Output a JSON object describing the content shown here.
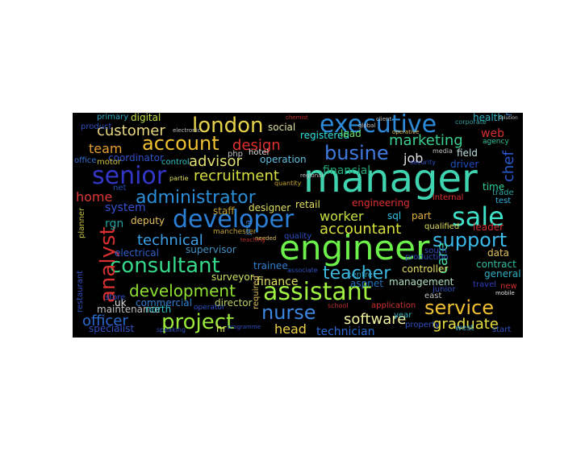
{
  "image": {
    "title": "",
    "type": "word cloud"
  },
  "words": [
    {
      "text": "manager",
      "color": "#3fd3b0"
    },
    {
      "text": "engineer",
      "color": "#6cf04a"
    },
    {
      "text": "developer",
      "color": "#2a7fd6"
    },
    {
      "text": "senior",
      "color": "#3237c8"
    },
    {
      "text": "sale",
      "color": "#3fe0c8"
    },
    {
      "text": "executive",
      "color": "#2d8ad8"
    },
    {
      "text": "assistant",
      "color": "#9ff040"
    },
    {
      "text": "london",
      "color": "#e5d24a"
    },
    {
      "text": "consultant",
      "color": "#36d88a"
    },
    {
      "text": "project",
      "color": "#9ae83a"
    },
    {
      "text": "service",
      "color": "#f0c030"
    },
    {
      "text": "support",
      "color": "#3ab8e8"
    },
    {
      "text": "account",
      "color": "#f0c230"
    },
    {
      "text": "busine",
      "color": "#3f7be0"
    },
    {
      "text": "administrator",
      "color": "#2a8fd8"
    },
    {
      "text": "analyst",
      "color": "#d63030"
    },
    {
      "text": "nurse",
      "color": "#3a86e0"
    },
    {
      "text": "teacher",
      "color": "#3cb8e0"
    },
    {
      "text": "development",
      "color": "#8fe030"
    },
    {
      "text": "recruitment",
      "color": "#d8e040"
    },
    {
      "text": "technical",
      "color": "#3aa0e8"
    },
    {
      "text": "accountant",
      "color": "#d8e03a"
    },
    {
      "text": "software",
      "color": "#f0f0a0"
    },
    {
      "text": "graduate",
      "color": "#e8e040"
    },
    {
      "text": "marketing",
      "color": "#38d090"
    },
    {
      "text": "design",
      "color": "#e03030"
    },
    {
      "text": "customer",
      "color": "#e8d880"
    },
    {
      "text": "officer",
      "color": "#2a6ad0"
    },
    {
      "text": "head",
      "color": "#f0d048"
    },
    {
      "text": "worker",
      "color": "#c8e040"
    },
    {
      "text": "advisor",
      "color": "#e0e070"
    },
    {
      "text": "team",
      "color": "#e8a030"
    },
    {
      "text": "home",
      "color": "#e03838"
    },
    {
      "text": "chef",
      "color": "#2a5ad0"
    },
    {
      "text": "care",
      "color": "#40d8a0"
    },
    {
      "text": "job",
      "color": "#e0e0e0"
    },
    {
      "text": "financial",
      "color": "#20a878"
    },
    {
      "text": "technician",
      "color": "#2a6ad0"
    },
    {
      "text": "mechanical",
      "color": "#2a7ad0"
    },
    {
      "text": "system",
      "color": "#3a50d0"
    },
    {
      "text": "finance",
      "color": "#e0e060"
    },
    {
      "text": "web",
      "color": "#d83030"
    },
    {
      "text": "rgn",
      "color": "#20a0a0"
    },
    {
      "text": "digital",
      "color": "#c0e040"
    },
    {
      "text": "coordinator",
      "color": "#3050c8"
    },
    {
      "text": "deputy",
      "color": "#e8c060"
    },
    {
      "text": "electrical",
      "color": "#3060c8"
    },
    {
      "text": "supervisor",
      "color": "#4090c0"
    },
    {
      "text": "maintenance",
      "color": "#c0c0c0"
    },
    {
      "text": "commercial",
      "color": "#3080d0"
    },
    {
      "text": "director",
      "color": "#c0d060"
    },
    {
      "text": "surveyor",
      "color": "#d0e060"
    },
    {
      "text": "specialist",
      "color": "#3050c0"
    },
    {
      "text": "management",
      "color": "#b0e0c0"
    },
    {
      "text": "controller",
      "color": "#e8e060"
    },
    {
      "text": "general",
      "color": "#30b0c0"
    },
    {
      "text": "contract",
      "color": "#30c0a0"
    },
    {
      "text": "data",
      "color": "#e0c060"
    },
    {
      "text": "field",
      "color": "#c0e0e0"
    },
    {
      "text": "driver",
      "color": "#2050c0"
    },
    {
      "text": "time",
      "color": "#30d0a0"
    },
    {
      "text": "sql",
      "color": "#30c0e0"
    },
    {
      "text": "part",
      "color": "#e0b040"
    },
    {
      "text": "leader",
      "color": "#d03030"
    },
    {
      "text": "registered",
      "color": "#30e0e0"
    },
    {
      "text": "lead",
      "color": "#60e060"
    },
    {
      "text": "social",
      "color": "#e0e0a0"
    },
    {
      "text": "operation",
      "color": "#60c0e0"
    },
    {
      "text": "health",
      "color": "#30b0c0"
    },
    {
      "text": "retail",
      "color": "#e0e060"
    },
    {
      "text": "designer",
      "color": "#e0e060"
    },
    {
      "text": "engineering",
      "color": "#e03030"
    },
    {
      "text": "staff",
      "color": "#c0a030"
    },
    {
      "text": "trainee",
      "color": "#3080d0"
    },
    {
      "text": "aspnet",
      "color": "#2070c0"
    },
    {
      "text": "required",
      "color": "#e0c060"
    },
    {
      "text": "uk",
      "color": "#e0e0e0"
    },
    {
      "text": "north",
      "color": "#30c0d0"
    },
    {
      "text": "hr",
      "color": "#e0e060"
    },
    {
      "text": "store",
      "color": "#3050c0"
    },
    {
      "text": "motor",
      "color": "#d0c040"
    },
    {
      "text": "product",
      "color": "#3050c0"
    },
    {
      "text": "office",
      "color": "#3070d0"
    },
    {
      "text": "primary",
      "color": "#30a0c0"
    },
    {
      "text": "quality",
      "color": "#3050c0"
    },
    {
      "text": "net",
      "color": "#2050b0"
    },
    {
      "text": "php",
      "color": "#c0c0c0"
    },
    {
      "text": "hotel",
      "color": "#e0e0e0"
    },
    {
      "text": "control",
      "color": "#30c0c0"
    },
    {
      "text": "test",
      "color": "#30b0e0"
    },
    {
      "text": "trade",
      "color": "#30a0a0"
    },
    {
      "text": "junior",
      "color": "#3050c0"
    },
    {
      "text": "east",
      "color": "#c0c0c0"
    },
    {
      "text": "west",
      "color": "#30a0d0"
    },
    {
      "text": "start",
      "color": "#3050c0"
    },
    {
      "text": "south",
      "color": "#3050c0"
    },
    {
      "text": "new",
      "color": "#d03030"
    },
    {
      "text": "travel",
      "color": "#3040c0"
    },
    {
      "text": "production",
      "color": "#3050c0"
    },
    {
      "text": "internal",
      "color": "#e03030"
    },
    {
      "text": "qualified",
      "color": "#e0e060"
    },
    {
      "text": "year",
      "color": "#30b0c0"
    },
    {
      "text": "property",
      "color": "#3050c0"
    },
    {
      "text": "application",
      "color": "#d03030"
    },
    {
      "text": "centre",
      "color": "#30a0c0"
    },
    {
      "text": "manchester",
      "color": "#c0a030"
    },
    {
      "text": "restaurant",
      "color": "#3050c0"
    },
    {
      "text": "planner",
      "color": "#c0c040"
    },
    {
      "text": "operator",
      "color": "#3050c0"
    },
    {
      "text": "agency",
      "color": "#30c0a0"
    },
    {
      "text": "corporate",
      "color": "#30a0a0"
    },
    {
      "text": "media",
      "color": "#c0c0c0"
    },
    {
      "text": "security",
      "color": "#3050c0"
    },
    {
      "text": "associate",
      "color": "#3050c0"
    },
    {
      "text": "school",
      "color": "#c03030"
    },
    {
      "text": "speaking",
      "color": "#3050c0"
    },
    {
      "text": "programme",
      "color": "#3050c0"
    },
    {
      "text": "mobile",
      "color": "#e0e0e0"
    },
    {
      "text": "java",
      "color": "#3080d0"
    },
    {
      "text": "client",
      "color": "#c0c0c0"
    },
    {
      "text": "electronic",
      "color": "#c0c0c0"
    },
    {
      "text": "quantity",
      "color": "#c0a030"
    },
    {
      "text": "regional",
      "color": "#c0c0c0"
    },
    {
      "text": "needed",
      "color": "#e0c060"
    },
    {
      "text": "partie",
      "color": "#e0e060"
    },
    {
      "text": "teaching",
      "color": "#c03030"
    },
    {
      "text": "solution",
      "color": "#c0c0c0"
    },
    {
      "text": "global",
      "color": "#c0c0c0"
    },
    {
      "text": "operative",
      "color": "#e0c060"
    },
    {
      "text": "chemist",
      "color": "#c03030"
    }
  ]
}
